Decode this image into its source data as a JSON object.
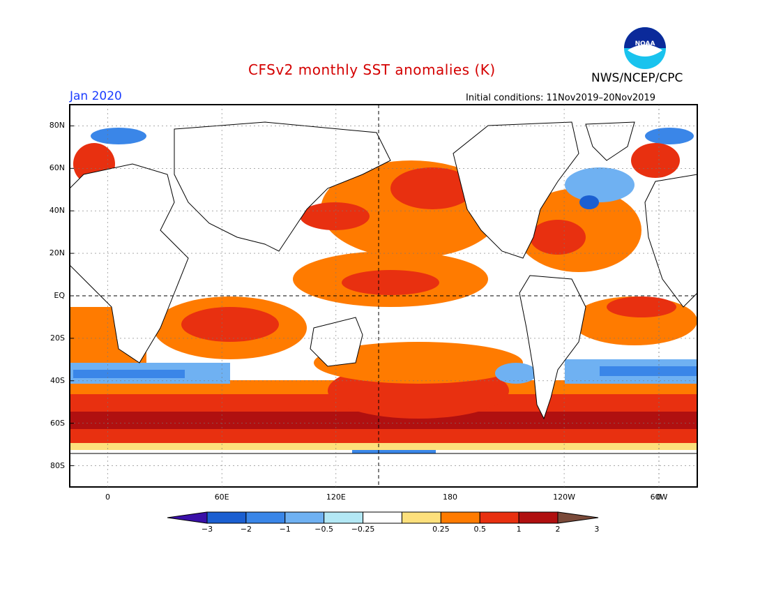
{
  "header": {
    "title": "CFSv2 monthly SST anomalies (K)",
    "org": "NWS/NCEP/CPC",
    "logo_text": "NOAA",
    "period": "Jan 2020",
    "initial_conditions": "Initial conditions: 11Nov2019–20Nov2019"
  },
  "map": {
    "lat_labels": [
      "80N",
      "60N",
      "40N",
      "20N",
      "EQ",
      "20S",
      "40S",
      "60S",
      "80S"
    ],
    "lon_labels": [
      "0",
      "60E",
      "120E",
      "180",
      "120W",
      "60W",
      "0"
    ],
    "lon_range": [
      -20,
      310
    ],
    "lat_range": [
      -90,
      90
    ]
  },
  "colorbar": {
    "labels": [
      "−3",
      "−2",
      "−1",
      "−0.5",
      "−0.25",
      "0.25",
      "0.5",
      "1",
      "2",
      "3"
    ],
    "colors": {
      "lt_m3": "#3a10a8",
      "m3_m2": "#1b5fd1",
      "m2_m1": "#3a86e8",
      "m1_m05": "#6fb1f2",
      "m05_m025": "#b3e8f5",
      "m025_025": "#ffffff",
      "p025_05": "#fde07c",
      "p05_1": "#ff7b00",
      "p1_2": "#e83010",
      "p2_3": "#b01010",
      "gt_3": "#7a4a3a"
    }
  }
}
